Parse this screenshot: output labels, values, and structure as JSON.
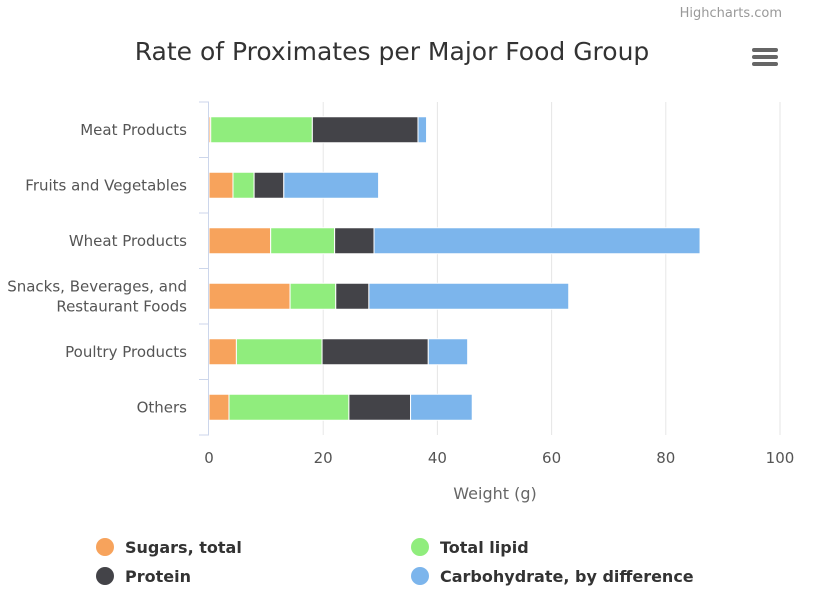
{
  "credits": "Highcharts.com",
  "menu": {
    "icon": "hamburger-menu-icon"
  },
  "chart_data": {
    "type": "bar",
    "stacked": true,
    "orientation": "horizontal",
    "title": "Rate of Proximates per Major Food Group",
    "categories": [
      "Meat Products",
      "Fruits and Vegetables",
      "Wheat Products",
      [
        "Snacks, Beverages, and",
        "Restaurant Foods"
      ],
      "Poultry Products",
      "Others"
    ],
    "xlabel": "",
    "ylabel": "Weight (g)",
    "ylim": [
      0,
      100
    ],
    "ticks": [
      0,
      20,
      40,
      60,
      80,
      100
    ],
    "grid": true,
    "legend_position": "bottom",
    "series": [
      {
        "name": "Sugars, total",
        "color": "#f7a35c",
        "values": [
          0.3,
          4.2,
          10.8,
          14.2,
          4.8,
          3.5
        ]
      },
      {
        "name": "Total lipid",
        "color": "#90ed7d",
        "values": [
          17.8,
          3.7,
          11.2,
          8.0,
          15.0,
          21.0
        ]
      },
      {
        "name": "Protein",
        "color": "#434348",
        "values": [
          18.5,
          5.2,
          6.9,
          5.8,
          18.6,
          10.8
        ]
      },
      {
        "name": "Carbohydrate, by difference",
        "color": "#7cb5ec",
        "values": [
          1.5,
          16.6,
          57.1,
          35.0,
          6.9,
          10.8
        ]
      }
    ]
  }
}
